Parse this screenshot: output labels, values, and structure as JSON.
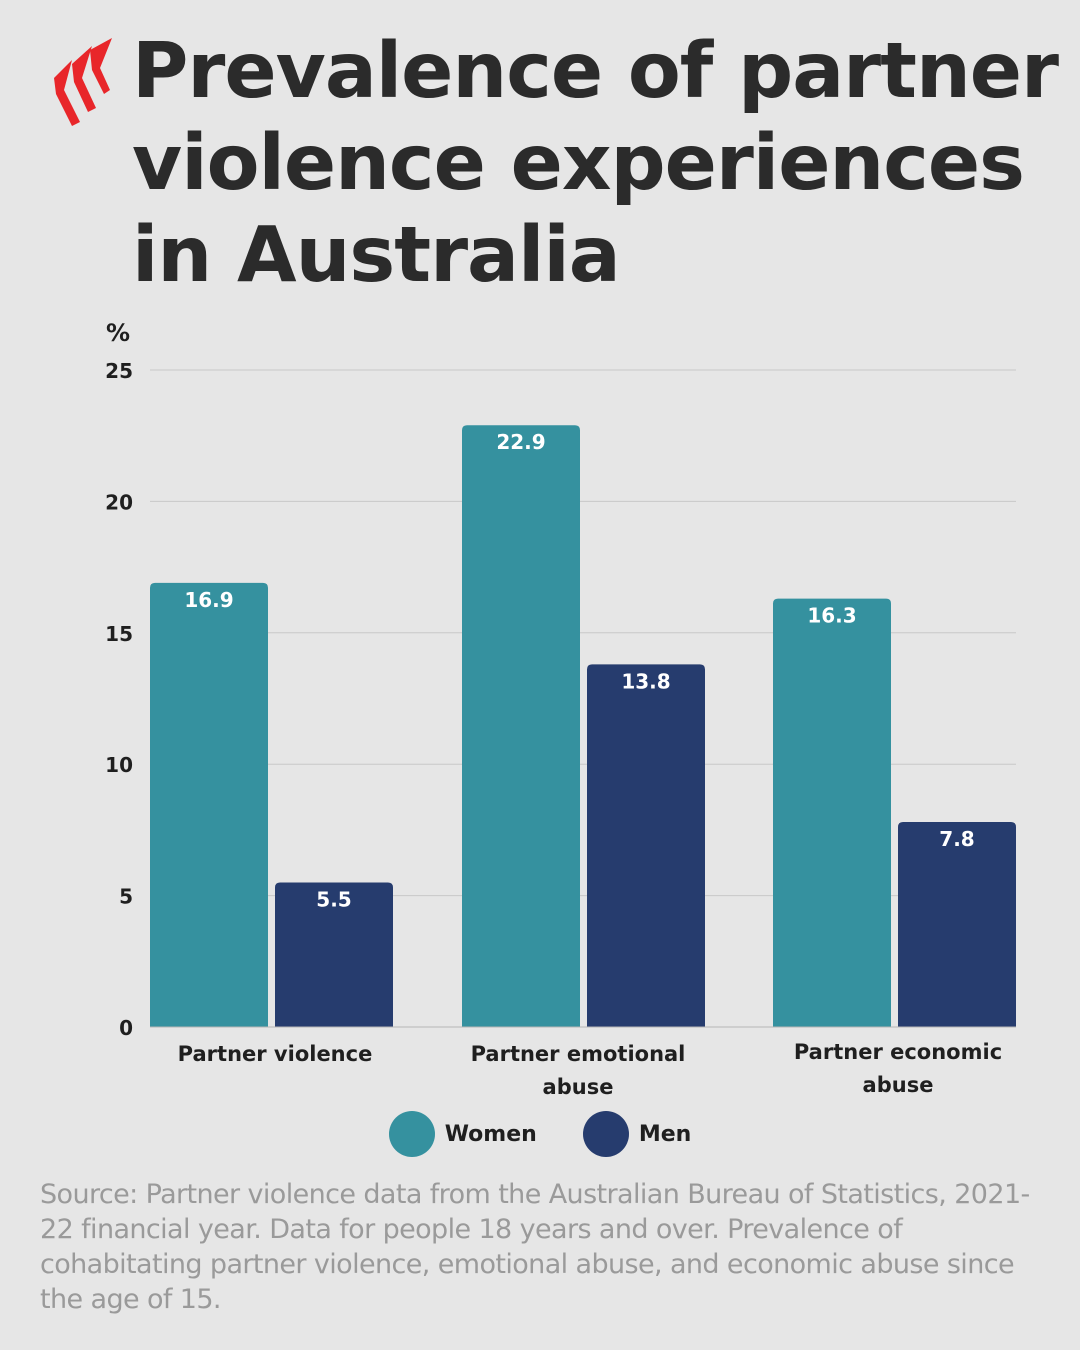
{
  "title": "Prevalence of partner violence experiences in Australia",
  "colors": {
    "background": "#e6e6e6",
    "women": "#35919f",
    "men": "#263c6e",
    "logo": "#e8262a"
  },
  "legend": [
    {
      "label": "Women",
      "color": "#35919f"
    },
    {
      "label": "Men",
      "color": "#263c6e"
    }
  ],
  "source": "Source: Partner violence data from the Australian Bureau of Statistics, 2021-22 financial year. Data for people 18 years and over. Prevalence of cohabitating partner violence, emotional abuse, and economic abuse since the age of 15.",
  "chart_data": {
    "type": "bar",
    "title": "Prevalence of partner violence experiences in Australia",
    "ylabel": "%",
    "xlabel": "",
    "ylim": [
      0,
      25
    ],
    "yticks": [
      0,
      5,
      10,
      15,
      20,
      25
    ],
    "grid": true,
    "legend_position": "bottom",
    "categories": [
      [
        "Partner violence"
      ],
      [
        "Partner emotional",
        "abuse"
      ],
      [
        "Partner economic",
        "abuse"
      ]
    ],
    "series": [
      {
        "name": "Women",
        "color": "#35919f",
        "values": [
          16.9,
          22.9,
          16.3
        ]
      },
      {
        "name": "Men",
        "color": "#263c6e",
        "values": [
          5.5,
          13.8,
          7.8
        ]
      }
    ]
  }
}
